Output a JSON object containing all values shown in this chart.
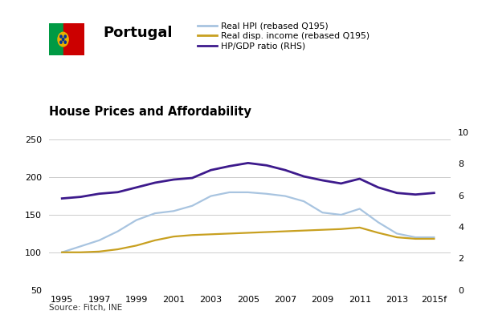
{
  "title_country": "Portugal",
  "title_chart": "House Prices and Affordability",
  "source": "Source: Fitch, INE",
  "years": [
    1995,
    1996,
    1997,
    1998,
    1999,
    2000,
    2001,
    2002,
    2003,
    2004,
    2005,
    2006,
    2007,
    2008,
    2009,
    2010,
    2011,
    2012,
    2013,
    2014,
    2015
  ],
  "x_labels": [
    "1995",
    "1997",
    "1999",
    "2001",
    "2003",
    "2005",
    "2007",
    "2009",
    "2011",
    "2013",
    "2015f"
  ],
  "x_tick_positions": [
    1995,
    1997,
    1999,
    2001,
    2003,
    2005,
    2007,
    2009,
    2011,
    2013,
    2015
  ],
  "real_hpi": [
    100,
    108,
    116,
    128,
    143,
    152,
    155,
    162,
    175,
    180,
    180,
    178,
    175,
    168,
    153,
    150,
    158,
    140,
    125,
    120,
    120
  ],
  "real_income": [
    100,
    100,
    101,
    104,
    109,
    116,
    121,
    123,
    124,
    125,
    126,
    127,
    128,
    129,
    130,
    131,
    133,
    126,
    120,
    118,
    118
  ],
  "hp_gdp": [
    5.8,
    5.9,
    6.1,
    6.2,
    6.5,
    6.8,
    7.0,
    7.1,
    7.6,
    7.85,
    8.05,
    7.9,
    7.6,
    7.2,
    6.95,
    6.75,
    7.05,
    6.5,
    6.15,
    6.05,
    6.15
  ],
  "color_hpi": "#a8c4e0",
  "color_income": "#c8a020",
  "color_hpgdp": "#3d1a8c",
  "ylim_left": [
    50,
    260
  ],
  "ylim_right": [
    0.0,
    10.0
  ],
  "yticks_left": [
    50,
    100,
    150,
    200,
    250
  ],
  "yticks_right": [
    0.0,
    2.0,
    4.0,
    6.0,
    8.0,
    10.0
  ],
  "xlim": [
    1994.3,
    2015.9
  ],
  "legend_hpi": "Real HPI (rebased Q195)",
  "legend_income": "Real disp. income (rebased Q195)",
  "legend_hpgdp": "HP/GDP ratio (RHS)",
  "bg_color": "#ffffff",
  "grid_color": "#cccccc",
  "flag_green": "#009a44",
  "flag_red": "#cc0000",
  "flag_yellow": "#e8b000",
  "flag_blue": "#003399"
}
